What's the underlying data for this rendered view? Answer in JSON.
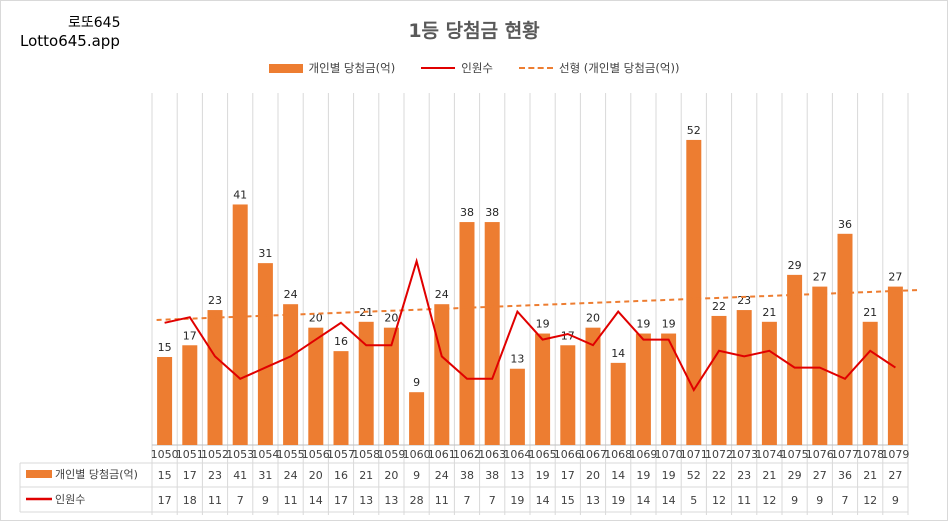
{
  "brand": {
    "line1": "로또645",
    "line2": "Lotto645.app"
  },
  "colors": {
    "bar": "#ED7D31",
    "line": "#E00000",
    "trend": "#ED7D31",
    "grid": "#D9D9D9",
    "text": "#595959"
  },
  "chart_data": {
    "type": "bar",
    "title": "1등 당첨금 현황",
    "categories": [
      "1050",
      "1051",
      "1052",
      "1053",
      "1054",
      "1055",
      "1056",
      "1057",
      "1058",
      "1059",
      "1060",
      "1061",
      "1062",
      "1063",
      "1064",
      "1065",
      "1066",
      "1067",
      "1068",
      "1069",
      "1070",
      "1071",
      "1072",
      "1073",
      "1074",
      "1075",
      "1076",
      "1077",
      "1078",
      "1079"
    ],
    "series": [
      {
        "name": "개인별 당첨금(억)",
        "kind": "bar",
        "values": [
          15,
          17,
          23,
          41,
          31,
          24,
          20,
          16,
          21,
          20,
          9,
          24,
          38,
          38,
          13,
          19,
          17,
          20,
          14,
          19,
          19,
          52,
          22,
          23,
          21,
          29,
          27,
          36,
          21,
          27
        ]
      },
      {
        "name": "인원수",
        "kind": "line",
        "values": [
          17,
          18,
          11,
          7,
          9,
          11,
          14,
          17,
          13,
          13,
          28,
          11,
          7,
          7,
          19,
          14,
          15,
          13,
          19,
          14,
          14,
          5,
          12,
          11,
          12,
          9,
          9,
          7,
          12,
          9
        ]
      },
      {
        "name": "선형 (개인별 당첨금(억))",
        "kind": "trendline"
      }
    ],
    "ylim": [
      0,
      60
    ],
    "grid": "vertical",
    "legend": "top",
    "data_table": true
  }
}
